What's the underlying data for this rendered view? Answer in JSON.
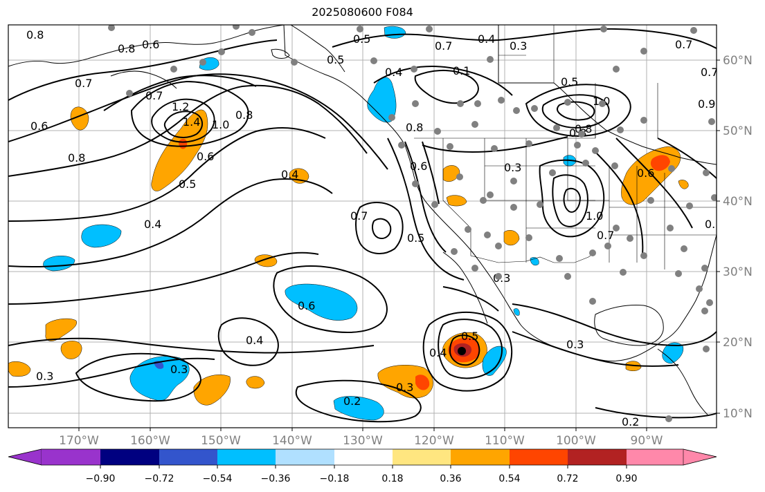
{
  "title": "2025080600 F084",
  "lon_labels": [
    "170°W",
    "160°W",
    "150°W",
    "140°W",
    "130°W",
    "120°W",
    "110°W",
    "100°W",
    "90°W"
  ],
  "lat_labels": [
    "60°N",
    "50°N",
    "40°N",
    "30°N",
    "20°N",
    "10°N"
  ],
  "colorbar": {
    "ticks": [
      "−0.90",
      "−0.72",
      "−0.54",
      "−0.36",
      "−0.18",
      "0.18",
      "0.36",
      "0.54",
      "0.72",
      "0.90"
    ],
    "colors": [
      "#9933cc",
      "#000080",
      "#3355cc",
      "#00bfff",
      "#b0e0ff",
      "#ffffff",
      "#ffe680",
      "#ffa500",
      "#ff4500",
      "#b22222",
      "#ff88aa"
    ]
  },
  "contour_labels": [
    "0.8",
    "0.8",
    "0.6",
    "0.7",
    "0.7",
    "0.6",
    "1.2",
    "1.4",
    "1.0",
    "0.8",
    "0.8",
    "0.6",
    "0.5",
    "0.4",
    "0.4",
    "0.5",
    "0.5",
    "0.4",
    "0.7",
    "0.4",
    "0.3",
    "0.7",
    "0.5",
    "1.0",
    "0.8",
    "0.9",
    "0.8",
    "0.6",
    "0.3",
    "0.6",
    "0.7",
    "0.5",
    "1.0",
    "0.7",
    "0.3",
    "0.6",
    "0.4",
    "0.3",
    "0.3",
    "0.4",
    "0.5",
    "0.3",
    "0.2",
    "0.2",
    "0.3",
    "0.3",
    "0.7",
    "0.1",
    "0.8"
  ],
  "colors": {
    "stations": "#808080",
    "contour": "#000000",
    "grid": "#b0b0b0"
  }
}
